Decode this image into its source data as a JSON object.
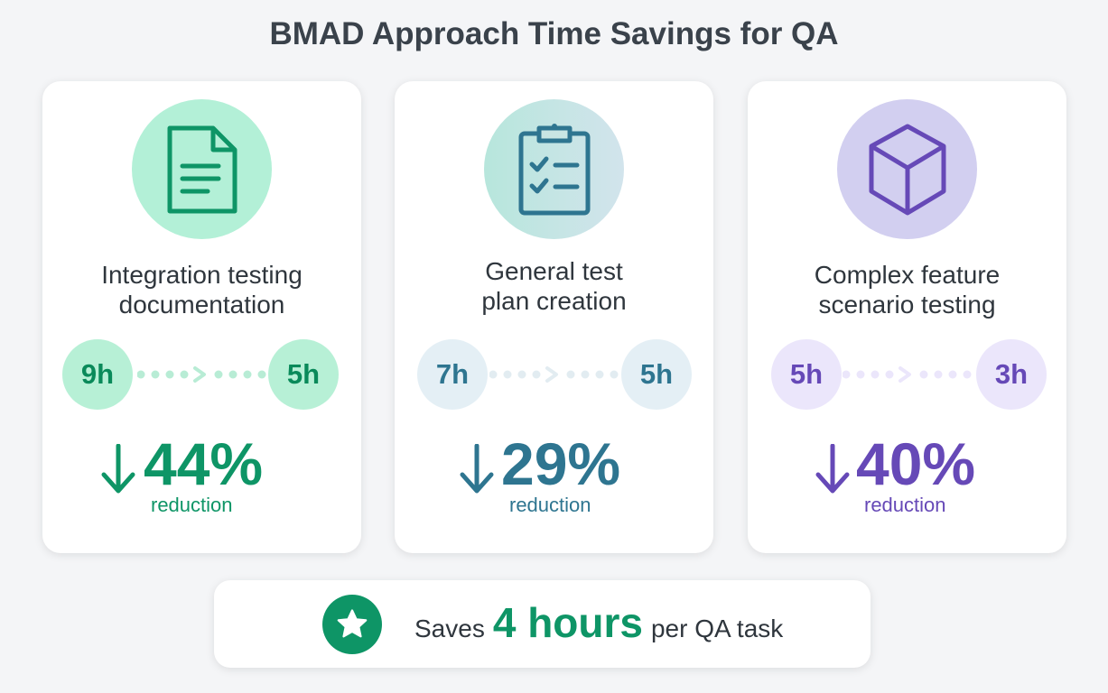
{
  "title": "BMAD Approach Time Savings for QA",
  "cards": [
    {
      "icon": "document-icon",
      "label_line1": "Integration testing",
      "label_line2": "documentation",
      "before": "9h",
      "after": "5h",
      "reduction_value": "44%",
      "reduction_label": "reduction",
      "accent": "#0e9566",
      "circle_bg": "#b3f0d7",
      "pill_bg": "#b7f0d6",
      "pill_text": "#0a8a5a",
      "dot_color": "#b8ecd5"
    },
    {
      "icon": "clipboard-checklist-icon",
      "label_line1": "General test",
      "label_line2": "plan creation",
      "before": "7h",
      "after": "5h",
      "reduction_value": "29%",
      "reduction_label": "reduction",
      "accent": "#2e7590",
      "circle_bg": "#c4e4e2",
      "pill_bg": "#e4eff5",
      "pill_text": "#2e7590",
      "dot_color": "#e2ecf1"
    },
    {
      "icon": "cube-icon",
      "label_line1": "Complex feature",
      "label_line2": "scenario testing",
      "before": "5h",
      "after": "3h",
      "reduction_value": "40%",
      "reduction_label": "reduction",
      "accent": "#6649b7",
      "circle_bg": "#d2cff0",
      "pill_bg": "#ebe6fb",
      "pill_text": "#6649b7",
      "dot_color": "#ebe6fb"
    }
  ],
  "summary": {
    "icon": "star-icon",
    "prefix": "Saves",
    "highlight": "4 hours",
    "suffix": "per QA task",
    "accent": "#0e9566"
  }
}
